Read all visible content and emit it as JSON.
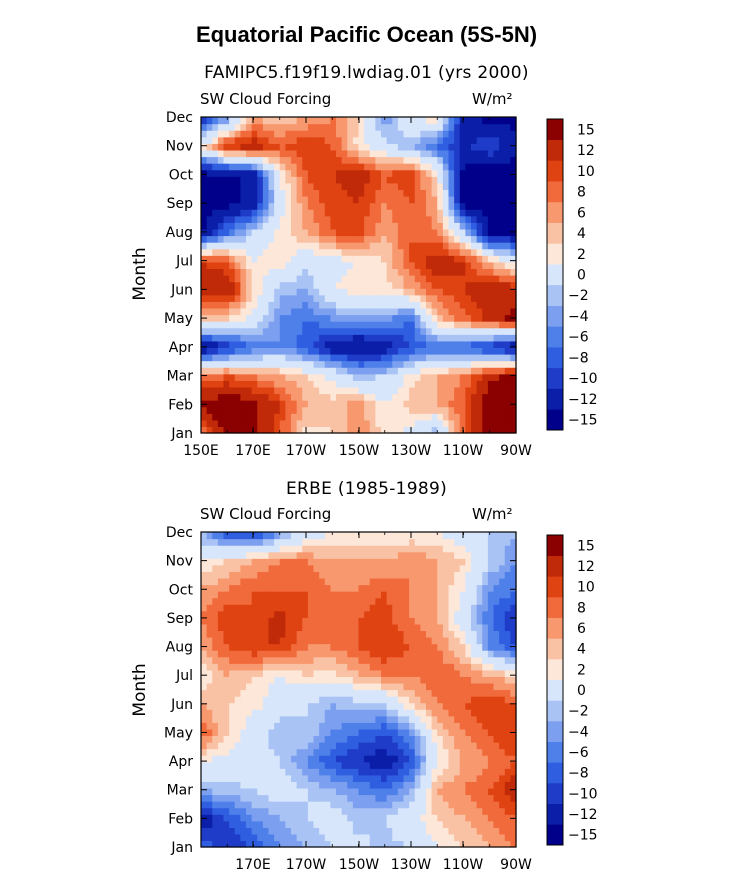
{
  "figure": {
    "title": "Equatorial Pacific Ocean (5S-5N)"
  },
  "palette": [
    "#00008b",
    "#0a1ea8",
    "#1e3cc8",
    "#2f5fe0",
    "#4f80ea",
    "#7ca0ef",
    "#a9c3f5",
    "#d8e6fb",
    "#fde7d8",
    "#fac2a4",
    "#f7986e",
    "#f16a3c",
    "#e04312",
    "#c02a08",
    "#8b0000"
  ],
  "chart_data": [
    {
      "type": "heatmap",
      "subtitle": "FAMIPC5.f19f19.lwdiag.01 (yrs 2000)",
      "variable": "SW Cloud Forcing",
      "units": "W/m²",
      "ylabel": "Month",
      "months": [
        "Jan",
        "Feb",
        "Mar",
        "Apr",
        "May",
        "Jun",
        "Jul",
        "Aug",
        "Sep",
        "Oct",
        "Nov",
        "Dec"
      ],
      "xticks": [
        "150E",
        "170E",
        "170W",
        "150W",
        "130W",
        "110W",
        "90W"
      ],
      "lon_range": [
        150,
        270
      ],
      "contour_levels": [
        "-15",
        "-12",
        "-10",
        "-8",
        "-6",
        "-4",
        "-2",
        "0",
        "2",
        "4",
        "6",
        "8",
        "10",
        "12",
        "15"
      ],
      "grid_lons": [
        150,
        160,
        170,
        180,
        190,
        200,
        210,
        220,
        230,
        240,
        250,
        260,
        270
      ],
      "values": [
        [
          8,
          16,
          16,
          10,
          3,
          4,
          8,
          3,
          1,
          -4,
          10,
          16,
          16
        ],
        [
          16,
          18,
          16,
          12,
          6,
          5,
          7,
          2,
          5,
          6,
          10,
          18,
          18
        ],
        [
          8,
          10,
          8,
          6,
          4,
          1,
          -3,
          -2,
          3,
          6,
          8,
          14,
          16
        ],
        [
          -16,
          -12,
          -8,
          -6,
          -9,
          -14,
          -16,
          -14,
          -10,
          -8,
          -9,
          -12,
          -16
        ],
        [
          6,
          4,
          1,
          -6,
          -8,
          -6,
          -4,
          -5,
          -8,
          5,
          9,
          13,
          16
        ],
        [
          14,
          15,
          4,
          -3,
          -4,
          2,
          3,
          3,
          6,
          10,
          12,
          14,
          14
        ],
        [
          12,
          10,
          2,
          4,
          -1,
          1,
          2,
          4,
          10,
          14,
          12,
          5,
          0
        ],
        [
          -16,
          -8,
          -2,
          3,
          6,
          10,
          11,
          6,
          10,
          8,
          -2,
          -16,
          -16
        ],
        [
          -16,
          -16,
          -14,
          0,
          8,
          11,
          12,
          8,
          10,
          6,
          -16,
          -17,
          -17
        ],
        [
          -16,
          -16,
          -14,
          2,
          10,
          12,
          14,
          10,
          12,
          3,
          -16,
          -17,
          -17
        ],
        [
          2,
          12,
          14,
          10,
          12,
          10,
          3,
          -1,
          -4,
          -8,
          -13,
          -10,
          -14
        ],
        [
          -14,
          -6,
          6,
          4,
          6,
          8,
          4,
          -6,
          2,
          4,
          -14,
          -16,
          -16
        ]
      ]
    },
    {
      "type": "heatmap",
      "subtitle": "ERBE (1985-1989)",
      "variable": "SW Cloud Forcing",
      "units": "W/m²",
      "ylabel": "Month",
      "months": [
        "Jan",
        "Feb",
        "Mar",
        "Apr",
        "May",
        "Jun",
        "Jul",
        "Aug",
        "Sep",
        "Oct",
        "Nov",
        "Dec"
      ],
      "xticks": [
        "170E",
        "170W",
        "150W",
        "130W",
        "110W",
        "90W"
      ],
      "lon_range": [
        150,
        270
      ],
      "contour_levels": [
        "-15",
        "-12",
        "-10",
        "-8",
        "-6",
        "-4",
        "-2",
        "0",
        "2",
        "4",
        "6",
        "8",
        "10",
        "12",
        "15"
      ],
      "grid_lons": [
        150,
        160,
        170,
        180,
        190,
        200,
        210,
        220,
        230,
        240,
        250,
        260,
        270
      ],
      "values": [
        [
          -8,
          -12,
          -10,
          -6,
          -4,
          -2,
          -1,
          -3,
          -2,
          2,
          4,
          6,
          8
        ],
        [
          -14,
          -10,
          -6,
          -4,
          -2,
          0,
          -3,
          -2,
          1,
          4,
          6,
          8,
          10
        ],
        [
          -4,
          -3,
          -2,
          0,
          -2,
          -4,
          -6,
          -8,
          -4,
          6,
          8,
          10,
          14
        ],
        [
          2,
          1,
          0,
          -2,
          -6,
          -10,
          -12,
          -14,
          -10,
          2,
          6,
          8,
          10
        ],
        [
          10,
          4,
          0,
          -4,
          -2,
          -6,
          -8,
          -10,
          -6,
          4,
          8,
          10,
          12
        ],
        [
          6,
          4,
          3,
          0,
          -2,
          -4,
          -3,
          -2,
          4,
          8,
          10,
          12,
          10
        ],
        [
          2,
          6,
          4,
          2,
          4,
          3,
          6,
          8,
          8,
          10,
          8,
          6,
          4
        ],
        [
          6,
          10,
          12,
          12,
          8,
          8,
          10,
          12,
          10,
          8,
          4,
          -6,
          -10
        ],
        [
          8,
          12,
          10,
          13,
          10,
          8,
          10,
          11,
          8,
          6,
          0,
          -8,
          -12
        ],
        [
          6,
          8,
          10,
          10,
          10,
          8,
          8,
          10,
          8,
          6,
          2,
          -6,
          -8
        ],
        [
          2,
          4,
          6,
          8,
          8,
          6,
          6,
          6,
          8,
          6,
          4,
          -2,
          -6
        ],
        [
          -4,
          -10,
          -12,
          -6,
          0,
          2,
          2,
          2,
          2,
          2,
          0,
          -2,
          -4
        ]
      ]
    }
  ]
}
